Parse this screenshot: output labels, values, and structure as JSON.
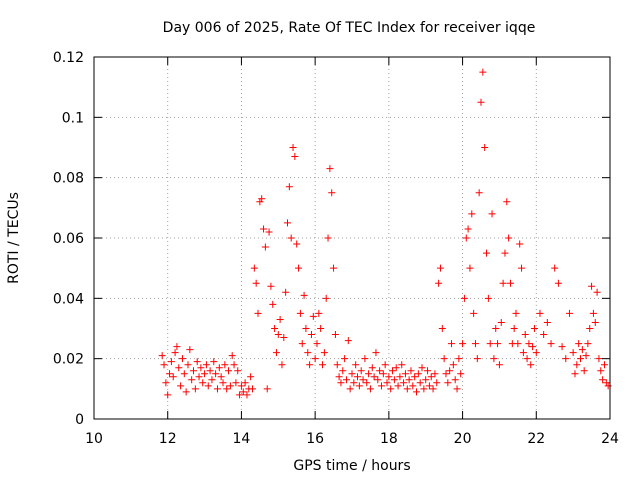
{
  "chart_data": {
    "type": "scatter",
    "title": "Day 006 of 2025, Rate Of TEC Index for receiver iqqe",
    "xlabel": "GPS time / hours",
    "ylabel": "ROTI / TECUs",
    "xlim": [
      10,
      24
    ],
    "ylim": [
      0,
      0.12
    ],
    "x_ticks": [
      10,
      12,
      14,
      16,
      18,
      20,
      22,
      24
    ],
    "x_tick_labels": [
      "10",
      "12",
      "14",
      "16",
      "18",
      "20",
      "22",
      "24"
    ],
    "y_ticks": [
      0,
      0.02,
      0.04,
      0.06,
      0.08,
      0.1,
      0.12
    ],
    "y_tick_labels": [
      "0",
      "0.02",
      "0.04",
      "0.06",
      "0.08",
      "0.1",
      "0.12"
    ],
    "grid": true,
    "legend": "none",
    "marker": "+",
    "color": "#ff0000",
    "series": [
      {
        "name": "ROTI",
        "points": [
          [
            11.85,
            0.021
          ],
          [
            11.9,
            0.018
          ],
          [
            11.95,
            0.012
          ],
          [
            12.0,
            0.008
          ],
          [
            12.05,
            0.015
          ],
          [
            12.1,
            0.019
          ],
          [
            12.15,
            0.014
          ],
          [
            12.2,
            0.022
          ],
          [
            12.25,
            0.024
          ],
          [
            12.3,
            0.017
          ],
          [
            12.35,
            0.011
          ],
          [
            12.4,
            0.02
          ],
          [
            12.45,
            0.015
          ],
          [
            12.5,
            0.009
          ],
          [
            12.55,
            0.018
          ],
          [
            12.6,
            0.023
          ],
          [
            12.65,
            0.013
          ],
          [
            12.7,
            0.016
          ],
          [
            12.75,
            0.01
          ],
          [
            12.8,
            0.019
          ],
          [
            12.85,
            0.014
          ],
          [
            12.9,
            0.017
          ],
          [
            12.95,
            0.012
          ],
          [
            13.0,
            0.015
          ],
          [
            13.05,
            0.018
          ],
          [
            13.1,
            0.011
          ],
          [
            13.15,
            0.016
          ],
          [
            13.2,
            0.013
          ],
          [
            13.25,
            0.019
          ],
          [
            13.3,
            0.015
          ],
          [
            13.35,
            0.01
          ],
          [
            13.4,
            0.017
          ],
          [
            13.45,
            0.014
          ],
          [
            13.5,
            0.012
          ],
          [
            13.55,
            0.018
          ],
          [
            13.6,
            0.01
          ],
          [
            13.65,
            0.016
          ],
          [
            13.7,
            0.011
          ],
          [
            13.75,
            0.021
          ],
          [
            13.8,
            0.018
          ],
          [
            13.85,
            0.012
          ],
          [
            13.9,
            0.016
          ],
          [
            13.95,
            0.008
          ],
          [
            14.0,
            0.011
          ],
          [
            14.05,
            0.009
          ],
          [
            14.1,
            0.012
          ],
          [
            14.15,
            0.008
          ],
          [
            14.2,
            0.01
          ],
          [
            14.25,
            0.014
          ],
          [
            14.3,
            0.01
          ],
          [
            14.35,
            0.05
          ],
          [
            14.4,
            0.045
          ],
          [
            14.45,
            0.035
          ],
          [
            14.5,
            0.072
          ],
          [
            14.55,
            0.073
          ],
          [
            14.6,
            0.063
          ],
          [
            14.65,
            0.057
          ],
          [
            14.7,
            0.01
          ],
          [
            14.75,
            0.062
          ],
          [
            14.8,
            0.044
          ],
          [
            14.85,
            0.038
          ],
          [
            14.9,
            0.03
          ],
          [
            14.95,
            0.022
          ],
          [
            15.0,
            0.028
          ],
          [
            15.05,
            0.033
          ],
          [
            15.1,
            0.018
          ],
          [
            15.15,
            0.027
          ],
          [
            15.2,
            0.042
          ],
          [
            15.25,
            0.065
          ],
          [
            15.3,
            0.077
          ],
          [
            15.35,
            0.06
          ],
          [
            15.4,
            0.09
          ],
          [
            15.45,
            0.087
          ],
          [
            15.5,
            0.058
          ],
          [
            15.55,
            0.05
          ],
          [
            15.6,
            0.035
          ],
          [
            15.65,
            0.025
          ],
          [
            15.7,
            0.041
          ],
          [
            15.75,
            0.03
          ],
          [
            15.8,
            0.022
          ],
          [
            15.85,
            0.018
          ],
          [
            15.9,
            0.028
          ],
          [
            15.95,
            0.034
          ],
          [
            16.0,
            0.02
          ],
          [
            16.05,
            0.025
          ],
          [
            16.1,
            0.035
          ],
          [
            16.15,
            0.03
          ],
          [
            16.2,
            0.018
          ],
          [
            16.25,
            0.022
          ],
          [
            16.3,
            0.04
          ],
          [
            16.35,
            0.06
          ],
          [
            16.4,
            0.083
          ],
          [
            16.45,
            0.075
          ],
          [
            16.5,
            0.05
          ],
          [
            16.55,
            0.028
          ],
          [
            16.6,
            0.018
          ],
          [
            16.65,
            0.014
          ],
          [
            16.7,
            0.012
          ],
          [
            16.75,
            0.016
          ],
          [
            16.8,
            0.02
          ],
          [
            16.85,
            0.013
          ],
          [
            16.9,
            0.026
          ],
          [
            16.95,
            0.01
          ],
          [
            17.0,
            0.015
          ],
          [
            17.05,
            0.012
          ],
          [
            17.1,
            0.018
          ],
          [
            17.15,
            0.014
          ],
          [
            17.2,
            0.011
          ],
          [
            17.25,
            0.016
          ],
          [
            17.3,
            0.013
          ],
          [
            17.35,
            0.02
          ],
          [
            17.4,
            0.012
          ],
          [
            17.45,
            0.015
          ],
          [
            17.5,
            0.01
          ],
          [
            17.55,
            0.017
          ],
          [
            17.6,
            0.014
          ],
          [
            17.65,
            0.022
          ],
          [
            17.7,
            0.013
          ],
          [
            17.75,
            0.016
          ],
          [
            17.8,
            0.011
          ],
          [
            17.85,
            0.015
          ],
          [
            17.9,
            0.018
          ],
          [
            17.95,
            0.012
          ],
          [
            18.0,
            0.014
          ],
          [
            18.05,
            0.01
          ],
          [
            18.1,
            0.016
          ],
          [
            18.15,
            0.013
          ],
          [
            18.2,
            0.017
          ],
          [
            18.25,
            0.011
          ],
          [
            18.3,
            0.014
          ],
          [
            18.35,
            0.018
          ],
          [
            18.4,
            0.012
          ],
          [
            18.45,
            0.015
          ],
          [
            18.5,
            0.01
          ],
          [
            18.55,
            0.013
          ],
          [
            18.6,
            0.016
          ],
          [
            18.65,
            0.011
          ],
          [
            18.7,
            0.014
          ],
          [
            18.75,
            0.009
          ],
          [
            18.8,
            0.015
          ],
          [
            18.85,
            0.012
          ],
          [
            18.9,
            0.017
          ],
          [
            18.95,
            0.01
          ],
          [
            19.0,
            0.013
          ],
          [
            19.05,
            0.016
          ],
          [
            19.1,
            0.011
          ],
          [
            19.15,
            0.014
          ],
          [
            19.2,
            0.01
          ],
          [
            19.25,
            0.015
          ],
          [
            19.3,
            0.012
          ],
          [
            19.35,
            0.045
          ],
          [
            19.4,
            0.05
          ],
          [
            19.45,
            0.03
          ],
          [
            19.5,
            0.02
          ],
          [
            19.55,
            0.015
          ],
          [
            19.6,
            0.012
          ],
          [
            19.65,
            0.016
          ],
          [
            19.7,
            0.025
          ],
          [
            19.75,
            0.018
          ],
          [
            19.8,
            0.013
          ],
          [
            19.85,
            0.01
          ],
          [
            19.9,
            0.02
          ],
          [
            19.95,
            0.015
          ],
          [
            20.0,
            0.025
          ],
          [
            20.05,
            0.04
          ],
          [
            20.1,
            0.06
          ],
          [
            20.15,
            0.063
          ],
          [
            20.2,
            0.05
          ],
          [
            20.25,
            0.068
          ],
          [
            20.3,
            0.035
          ],
          [
            20.35,
            0.025
          ],
          [
            20.4,
            0.02
          ],
          [
            20.45,
            0.075
          ],
          [
            20.5,
            0.105
          ],
          [
            20.55,
            0.115
          ],
          [
            20.6,
            0.09
          ],
          [
            20.65,
            0.055
          ],
          [
            20.7,
            0.04
          ],
          [
            20.75,
            0.025
          ],
          [
            20.8,
            0.068
          ],
          [
            20.85,
            0.02
          ],
          [
            20.9,
            0.03
          ],
          [
            20.95,
            0.025
          ],
          [
            21.0,
            0.018
          ],
          [
            21.05,
            0.032
          ],
          [
            21.1,
            0.045
          ],
          [
            21.15,
            0.055
          ],
          [
            21.2,
            0.072
          ],
          [
            21.25,
            0.06
          ],
          [
            21.3,
            0.045
          ],
          [
            21.35,
            0.025
          ],
          [
            21.4,
            0.03
          ],
          [
            21.45,
            0.035
          ],
          [
            21.5,
            0.025
          ],
          [
            21.55,
            0.058
          ],
          [
            21.6,
            0.05
          ],
          [
            21.65,
            0.022
          ],
          [
            21.7,
            0.028
          ],
          [
            21.75,
            0.02
          ],
          [
            21.8,
            0.025
          ],
          [
            21.85,
            0.018
          ],
          [
            21.9,
            0.024
          ],
          [
            21.95,
            0.03
          ],
          [
            22.0,
            0.022
          ],
          [
            22.1,
            0.035
          ],
          [
            22.2,
            0.028
          ],
          [
            22.3,
            0.032
          ],
          [
            22.4,
            0.025
          ],
          [
            22.5,
            0.05
          ],
          [
            22.6,
            0.045
          ],
          [
            22.7,
            0.024
          ],
          [
            22.8,
            0.02
          ],
          [
            22.9,
            0.035
          ],
          [
            23.0,
            0.022
          ],
          [
            23.05,
            0.015
          ],
          [
            23.1,
            0.018
          ],
          [
            23.15,
            0.025
          ],
          [
            23.2,
            0.02
          ],
          [
            23.25,
            0.023
          ],
          [
            23.3,
            0.016
          ],
          [
            23.35,
            0.021
          ],
          [
            23.4,
            0.025
          ],
          [
            23.45,
            0.03
          ],
          [
            23.5,
            0.044
          ],
          [
            23.55,
            0.035
          ],
          [
            23.6,
            0.032
          ],
          [
            23.65,
            0.042
          ],
          [
            23.7,
            0.02
          ],
          [
            23.75,
            0.016
          ],
          [
            23.8,
            0.013
          ],
          [
            23.85,
            0.018
          ],
          [
            23.9,
            0.012
          ],
          [
            23.95,
            0.011
          ]
        ]
      }
    ]
  }
}
